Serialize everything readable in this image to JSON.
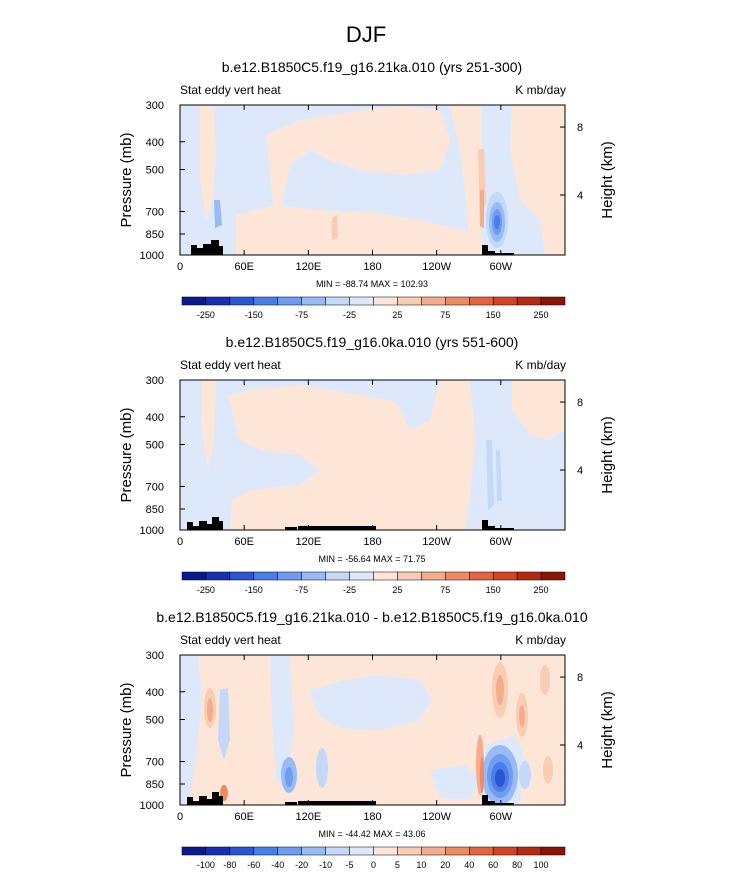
{
  "figure": {
    "title": "DJF"
  },
  "colors": {
    "c_n250": "#0a1a8c",
    "c_n200": "#1430b4",
    "c_n150": "#2a56d6",
    "c_n100": "#4a7ee8",
    "c_n75": "#6f9cf0",
    "c_n50": "#98bbf4",
    "c_n25": "#c4d8f8",
    "c_n0": "#dde9fb",
    "c_p0": "#fde6d8",
    "c_p25": "#f8cdb4",
    "c_p50": "#f3ad8c",
    "c_p75": "#ec8a64",
    "c_p100": "#e3643f",
    "c_p150": "#d44323",
    "c_p200": "#b42a12",
    "c_p250": "#8a1608",
    "topography": "#000000"
  },
  "chart_data": [
    {
      "type": "heatmap",
      "title": "b.e12.B1850C5.f19_g16.21ka.010 (yrs 251-300)",
      "left_label": "Stat eddy vert heat",
      "right_label": "K mb/day",
      "ylabel": "Pressure (mb)",
      "ylabel_right": "Height (km)",
      "xticks": [
        "0",
        "60E",
        "120E",
        "180",
        "120W",
        "60W"
      ],
      "yticks": [
        "300",
        "400",
        "500",
        "700",
        "850",
        "1000"
      ],
      "yticks_right": [
        "8",
        "4"
      ],
      "stats": "MIN = -88.74  MAX = 102.93",
      "colorbar_labels": [
        "-250",
        "-150",
        "-75",
        "-25",
        "25",
        "75",
        "150",
        "250"
      ],
      "xlim": [
        0,
        360
      ],
      "ylim": [
        1000,
        300
      ]
    },
    {
      "type": "heatmap",
      "title": "b.e12.B1850C5.f19_g16.0ka.010 (yrs 551-600)",
      "left_label": "Stat eddy vert heat",
      "right_label": "K mb/day",
      "ylabel": "Pressure (mb)",
      "ylabel_right": "Height (km)",
      "xticks": [
        "0",
        "60E",
        "120E",
        "180",
        "120W",
        "60W"
      ],
      "yticks": [
        "300",
        "400",
        "500",
        "700",
        "850",
        "1000"
      ],
      "yticks_right": [
        "8",
        "4"
      ],
      "stats": "MIN = -56.64  MAX = 71.75",
      "colorbar_labels": [
        "-250",
        "-150",
        "-75",
        "-25",
        "25",
        "75",
        "150",
        "250"
      ],
      "xlim": [
        0,
        360
      ],
      "ylim": [
        1000,
        300
      ]
    },
    {
      "type": "heatmap",
      "title": "b.e12.B1850C5.f19_g16.21ka.010 - b.e12.B1850C5.f19_g16.0ka.010",
      "left_label": "Stat eddy vert heat",
      "right_label": "K mb/day",
      "ylabel": "Pressure (mb)",
      "ylabel_right": "Height (km)",
      "xticks": [
        "0",
        "60E",
        "120E",
        "180",
        "120W",
        "60W"
      ],
      "yticks": [
        "300",
        "400",
        "500",
        "700",
        "850",
        "1000"
      ],
      "yticks_right": [
        "8",
        "4"
      ],
      "stats": "MIN = -44.42  MAX = 43.06",
      "colorbar_labels": [
        "-100",
        "-80",
        "-60",
        "-40",
        "-20",
        "-10",
        "-5",
        "0",
        "5",
        "10",
        "20",
        "40",
        "60",
        "80",
        "100"
      ],
      "xlim": [
        0,
        360
      ],
      "ylim": [
        1000,
        300
      ]
    }
  ]
}
